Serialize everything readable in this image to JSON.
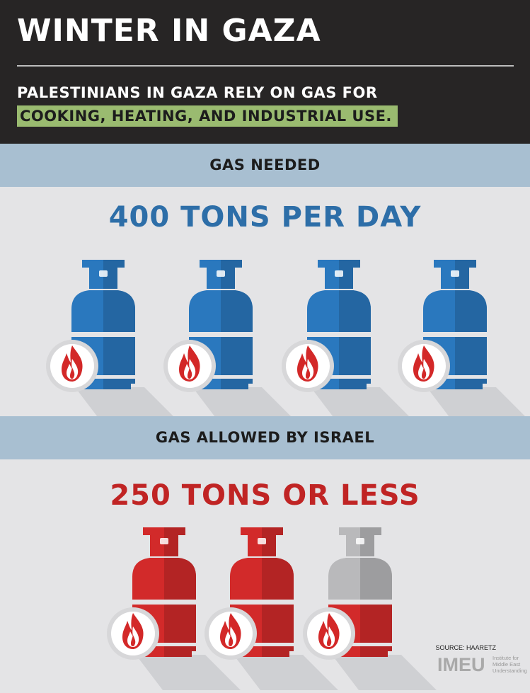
{
  "header": {
    "title": "WINTER IN GAZA",
    "subtitle_line1": "PALESTINIANS IN GAZA RELY ON GAS FOR",
    "subtitle_line2": "COOKING, HEATING, AND INDUSTRIAL USE."
  },
  "needed": {
    "label": "GAS NEEDED",
    "amount": "400 TONS PER DAY",
    "tanks": [
      "blue",
      "blue",
      "blue",
      "blue"
    ]
  },
  "allowed": {
    "label": "GAS ALLOWED BY ISRAEL",
    "amount": "250 TONS OR LESS",
    "tanks": [
      "red",
      "red",
      "gray-partial"
    ]
  },
  "footer": {
    "source": "SOURCE: HAARETZ",
    "logo": "IMEU",
    "logo_sub": [
      "Institute for",
      "Middle East",
      "Understanding"
    ]
  },
  "colors": {
    "header_bg": "#272525",
    "highlight": "#9abb70",
    "band": "#a8bfd1",
    "blue_text": "#2d6ea8",
    "red_text": "#c02424",
    "tank_blue": "#2a78be",
    "tank_red": "#d22a2a",
    "tank_gray": "#b9b9bb"
  }
}
